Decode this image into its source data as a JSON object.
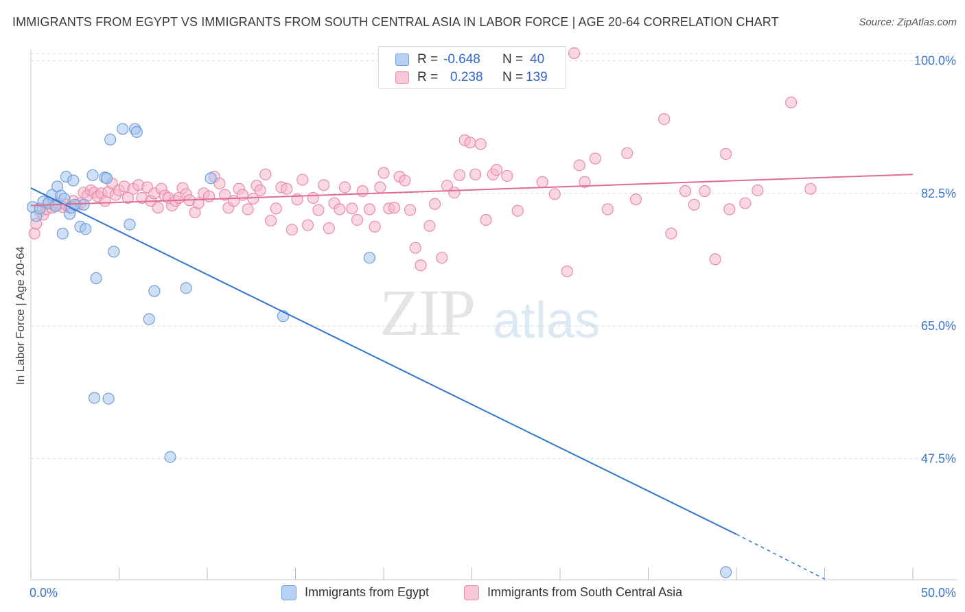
{
  "title": "IMMIGRANTS FROM EGYPT VS IMMIGRANTS FROM SOUTH CENTRAL ASIA IN LABOR FORCE | AGE 20-64 CORRELATION CHART",
  "source": "Source: ZipAtlas.com",
  "watermark": {
    "zip": "ZIP",
    "atlas": "atlas"
  },
  "legend_top": [
    {
      "r_label": "R =",
      "r_value": "-0.648",
      "n_label": "N =",
      "n_value": "40"
    },
    {
      "r_label": "R =",
      "r_value": "0.238",
      "n_label": "N =",
      "n_value": "139"
    }
  ],
  "colors": {
    "egypt_fill": "#a8c6ee",
    "egypt_stroke": "#6f9ed8",
    "egypt_line": "#2f74d0",
    "sca_fill": "#f5b8cb",
    "sca_stroke": "#e88aa8",
    "sca_line": "#e06b93",
    "tick_label": "#3a74c8",
    "grid": "#d7d7d7"
  },
  "chart_data": {
    "type": "scatter",
    "title": "IMMIGRANTS FROM EGYPT VS IMMIGRANTS FROM SOUTH CENTRAL ASIA IN LABOR FORCE | AGE 20-64 CORRELATION CHART",
    "xlabel": "",
    "ylabel": "In Labor Force | Age 20-64",
    "xlim": [
      0,
      50
    ],
    "ylim": [
      31.5,
      101.5
    ],
    "x_tick_labels": [
      {
        "value": 0,
        "label": "0.0%"
      },
      {
        "value": 50,
        "label": "50.0%"
      }
    ],
    "y_ticks": [
      {
        "value": 100,
        "label": "100.0%"
      },
      {
        "value": 82.5,
        "label": "82.5%"
      },
      {
        "value": 65,
        "label": "65.0%"
      },
      {
        "value": 47.5,
        "label": "47.5%"
      }
    ],
    "grid": true,
    "legend_position": "bottom",
    "series": [
      {
        "name": "Immigrants from Egypt",
        "trend": {
          "x0": 0,
          "y0": 83.2,
          "x1": 40,
          "y1": 37.5,
          "dashed_to_x": 45,
          "dashed_to_y": 31.6
        },
        "points": [
          [
            0.1,
            80.7
          ],
          [
            0.3,
            79.5
          ],
          [
            0.5,
            80.5
          ],
          [
            0.7,
            81.4
          ],
          [
            1.0,
            81.2
          ],
          [
            1.2,
            82.3
          ],
          [
            1.4,
            80.8
          ],
          [
            1.5,
            83.4
          ],
          [
            1.7,
            82.2
          ],
          [
            1.8,
            77.2
          ],
          [
            1.9,
            81.8
          ],
          [
            2.0,
            84.7
          ],
          [
            2.2,
            79.8
          ],
          [
            2.3,
            80.6
          ],
          [
            2.4,
            84.2
          ],
          [
            2.5,
            81.0
          ],
          [
            2.8,
            78.1
          ],
          [
            3.0,
            81.0
          ],
          [
            3.1,
            77.8
          ],
          [
            3.5,
            84.9
          ],
          [
            3.6,
            55.5
          ],
          [
            3.7,
            71.3
          ],
          [
            4.2,
            84.6
          ],
          [
            4.3,
            84.5
          ],
          [
            4.4,
            55.4
          ],
          [
            4.5,
            89.6
          ],
          [
            4.7,
            74.8
          ],
          [
            5.2,
            91.0
          ],
          [
            5.6,
            78.4
          ],
          [
            5.9,
            91.0
          ],
          [
            6.0,
            90.6
          ],
          [
            6.7,
            65.9
          ],
          [
            7.0,
            69.6
          ],
          [
            7.9,
            47.7
          ],
          [
            8.8,
            70.0
          ],
          [
            10.2,
            84.5
          ],
          [
            14.3,
            66.3
          ],
          [
            19.2,
            74.0
          ],
          [
            39.4,
            32.5
          ]
        ]
      },
      {
        "name": "Immigrants from South Central Asia",
        "trend": {
          "x0": 0,
          "y0": 80.9,
          "x1": 50,
          "y1": 85.0
        },
        "points": [
          [
            0.2,
            77.2
          ],
          [
            0.3,
            78.5
          ],
          [
            0.5,
            80.1
          ],
          [
            0.7,
            79.7
          ],
          [
            0.9,
            80.4
          ],
          [
            1.0,
            81.3
          ],
          [
            1.2,
            80.6
          ],
          [
            1.4,
            81.0
          ],
          [
            1.6,
            81.1
          ],
          [
            1.8,
            80.7
          ],
          [
            2.0,
            81.0
          ],
          [
            2.2,
            80.6
          ],
          [
            2.4,
            81.5
          ],
          [
            2.6,
            80.9
          ],
          [
            2.8,
            81.2
          ],
          [
            3.0,
            82.6
          ],
          [
            3.2,
            82.2
          ],
          [
            3.4,
            82.9
          ],
          [
            3.6,
            82.6
          ],
          [
            3.8,
            82.1
          ],
          [
            4.0,
            82.5
          ],
          [
            4.2,
            81.5
          ],
          [
            4.4,
            82.7
          ],
          [
            4.6,
            83.8
          ],
          [
            4.8,
            82.3
          ],
          [
            5.0,
            82.9
          ],
          [
            5.3,
            83.4
          ],
          [
            5.5,
            81.9
          ],
          [
            5.8,
            83.1
          ],
          [
            6.1,
            83.6
          ],
          [
            6.3,
            81.9
          ],
          [
            6.6,
            83.3
          ],
          [
            6.8,
            81.5
          ],
          [
            7.0,
            82.5
          ],
          [
            7.2,
            80.6
          ],
          [
            7.4,
            83.1
          ],
          [
            7.6,
            82.2
          ],
          [
            7.8,
            81.9
          ],
          [
            8.0,
            80.9
          ],
          [
            8.2,
            81.5
          ],
          [
            8.4,
            81.9
          ],
          [
            8.6,
            83.2
          ],
          [
            8.8,
            82.4
          ],
          [
            9.0,
            81.6
          ],
          [
            9.3,
            80.0
          ],
          [
            9.5,
            81.2
          ],
          [
            9.8,
            82.5
          ],
          [
            10.1,
            82.1
          ],
          [
            10.4,
            84.7
          ],
          [
            10.7,
            83.8
          ],
          [
            11.0,
            82.3
          ],
          [
            11.2,
            80.6
          ],
          [
            11.5,
            81.5
          ],
          [
            11.8,
            83.1
          ],
          [
            12.0,
            82.3
          ],
          [
            12.3,
            80.4
          ],
          [
            12.6,
            81.8
          ],
          [
            12.8,
            83.5
          ],
          [
            13.0,
            82.9
          ],
          [
            13.3,
            85.0
          ],
          [
            13.6,
            78.9
          ],
          [
            13.9,
            80.5
          ],
          [
            14.2,
            83.3
          ],
          [
            14.5,
            83.1
          ],
          [
            14.8,
            77.7
          ],
          [
            15.1,
            81.7
          ],
          [
            15.4,
            84.3
          ],
          [
            15.7,
            78.3
          ],
          [
            16.0,
            81.9
          ],
          [
            16.3,
            80.3
          ],
          [
            16.6,
            83.6
          ],
          [
            16.9,
            77.9
          ],
          [
            17.2,
            81.2
          ],
          [
            17.5,
            80.4
          ],
          [
            17.8,
            83.3
          ],
          [
            18.2,
            80.5
          ],
          [
            18.5,
            79.0
          ],
          [
            18.8,
            82.8
          ],
          [
            19.2,
            80.4
          ],
          [
            19.5,
            78.1
          ],
          [
            19.8,
            83.3
          ],
          [
            20.0,
            85.2
          ],
          [
            20.3,
            80.5
          ],
          [
            20.6,
            80.6
          ],
          [
            20.9,
            84.7
          ],
          [
            21.2,
            84.2
          ],
          [
            21.5,
            80.3
          ],
          [
            21.8,
            75.3
          ],
          [
            22.1,
            73.0
          ],
          [
            22.6,
            78.2
          ],
          [
            22.9,
            81.1
          ],
          [
            23.3,
            74.0
          ],
          [
            23.6,
            83.5
          ],
          [
            24.0,
            82.6
          ],
          [
            24.3,
            84.9
          ],
          [
            24.6,
            89.5
          ],
          [
            24.9,
            89.2
          ],
          [
            25.2,
            85.0
          ],
          [
            25.5,
            89.0
          ],
          [
            25.8,
            79.0
          ],
          [
            26.2,
            85.0
          ],
          [
            26.4,
            85.6
          ],
          [
            27.0,
            84.8
          ],
          [
            27.6,
            80.2
          ],
          [
            29.0,
            84.0
          ],
          [
            29.7,
            82.4
          ],
          [
            30.4,
            72.2
          ],
          [
            31.1,
            86.2
          ],
          [
            31.4,
            84.0
          ],
          [
            32.0,
            87.1
          ],
          [
            32.7,
            80.4
          ],
          [
            33.8,
            87.8
          ],
          [
            34.3,
            81.7
          ],
          [
            35.9,
            92.3
          ],
          [
            36.3,
            77.2
          ],
          [
            37.1,
            82.8
          ],
          [
            37.6,
            81.0
          ],
          [
            38.2,
            82.8
          ],
          [
            38.8,
            73.8
          ],
          [
            39.4,
            87.7
          ],
          [
            39.6,
            80.4
          ],
          [
            40.5,
            81.2
          ],
          [
            41.2,
            82.9
          ],
          [
            43.1,
            94.5
          ],
          [
            44.2,
            83.1
          ],
          [
            30.8,
            101.0
          ]
        ]
      }
    ]
  }
}
